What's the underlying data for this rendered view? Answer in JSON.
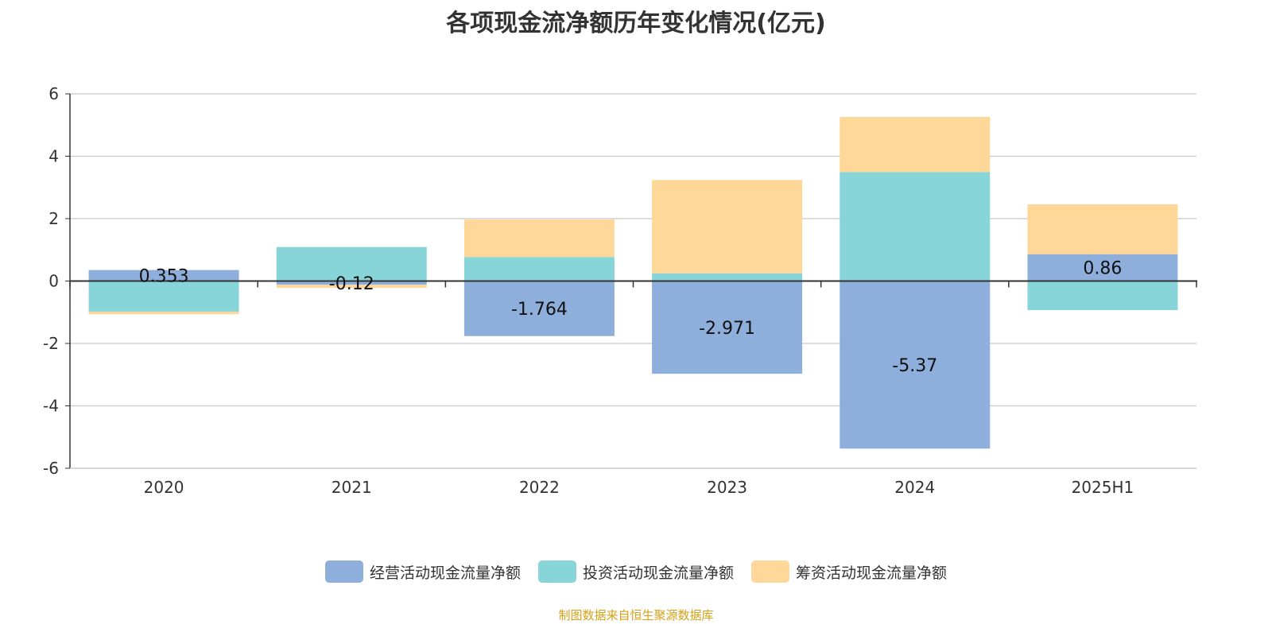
{
  "chart_data": {
    "type": "bar",
    "stacked": true,
    "title": "各项现金流净额历年变化情况(亿元)",
    "categories": [
      "2020",
      "2021",
      "2022",
      "2023",
      "2024",
      "2025H1"
    ],
    "ylim": [
      -6,
      6
    ],
    "yticks": [
      6,
      4,
      2,
      0,
      -2,
      -4,
      -6
    ],
    "grid": true,
    "legend_position": "bottom",
    "series": [
      {
        "name": "经营活动现金流量净额",
        "color": "#8eaedb",
        "values": [
          0.353,
          -0.12,
          -1.764,
          -2.971,
          -5.37,
          0.86
        ],
        "labels": [
          "0.353",
          "-0.12",
          "-1.764",
          "-2.971",
          "-5.37",
          "0.86"
        ]
      },
      {
        "name": "投资活动现金流量净额",
        "color": "#88d5d9",
        "values": [
          -0.98,
          1.09,
          0.77,
          0.25,
          3.49,
          -0.93
        ]
      },
      {
        "name": "筹资活动现金流量净额",
        "color": "#ffd899",
        "values": [
          -0.08,
          -0.1,
          1.2,
          2.99,
          1.77,
          1.6
        ]
      }
    ]
  },
  "source": "制图数据来自恒生聚源数据库"
}
